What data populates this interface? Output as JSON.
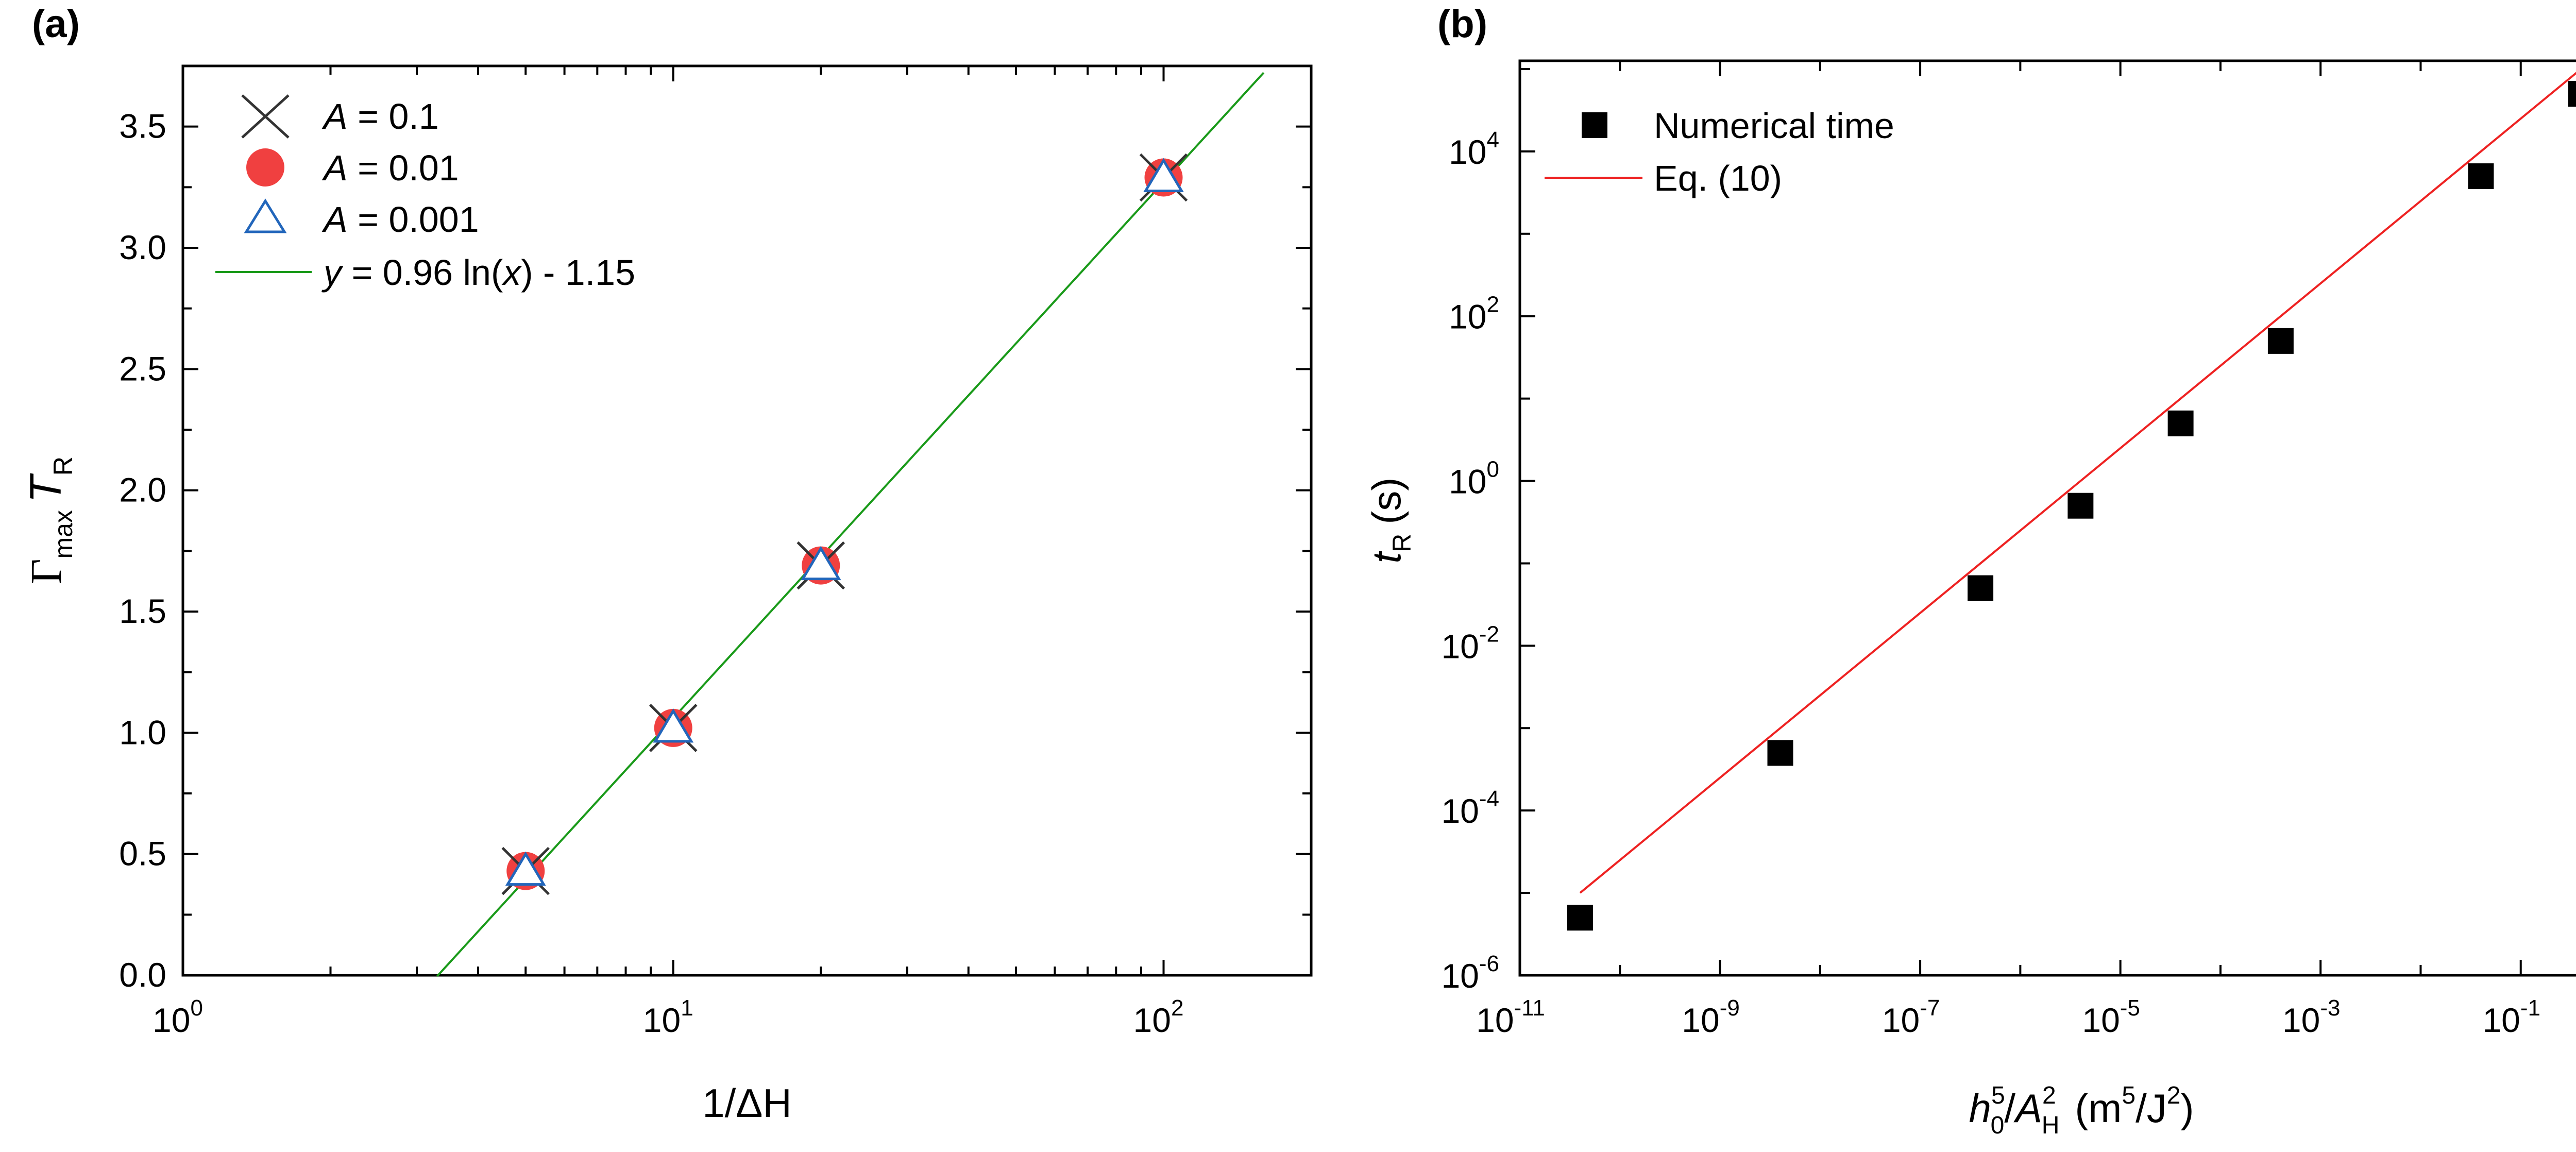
{
  "chart_data": [
    {
      "panel_label": "(a)",
      "type": "scatter",
      "x_scale": "log",
      "xlim": [
        1,
        200
      ],
      "ylim": [
        0,
        3.75
      ],
      "x_ticks": [
        1,
        10,
        100
      ],
      "y_ticks": [
        0.0,
        0.5,
        1.0,
        1.5,
        2.0,
        2.5,
        3.0,
        3.5
      ],
      "y_tick_labels": [
        "0.0",
        "0.5",
        "1.0",
        "1.5",
        "2.0",
        "2.5",
        "3.0",
        "3.5"
      ],
      "xlabel": "1/ΔH",
      "xlabel_sub": "0",
      "ylabel": "Γ",
      "ylabel_sub1": "max",
      "ylabel_T": "T",
      "ylabel_sub2": "R",
      "grid": false,
      "legend_position": "top-left",
      "series": [
        {
          "name": "A = 0.1",
          "name_var": "A",
          "name_rest": " = 0.1",
          "marker": "x",
          "color": "#333333",
          "x": [
            5,
            10,
            20,
            100
          ],
          "y": [
            0.43,
            1.02,
            1.69,
            3.29
          ]
        },
        {
          "name": "A = 0.01",
          "name_var": "A",
          "name_rest": " = 0.01",
          "marker": "circle",
          "color": "#f04040",
          "x": [
            5,
            10,
            20,
            100
          ],
          "y": [
            0.43,
            1.02,
            1.69,
            3.29
          ]
        },
        {
          "name": "A = 0.001",
          "name_var": "A",
          "name_rest": " = 0.001",
          "marker": "triangle",
          "color": "#2266bb",
          "x": [
            5,
            10,
            20,
            100
          ],
          "y": [
            0.43,
            1.02,
            1.69,
            3.29
          ]
        },
        {
          "name": "y = 0.96 ln(x) - 1.15",
          "name_var": "y",
          "name_mid": " = 0.96 ln(",
          "name_var2": "x",
          "name_rest": ") - 1.15",
          "marker": "line",
          "color": "#1a9a1a",
          "fit": {
            "slope": 0.96,
            "intercept": -1.15
          },
          "x_range": [
            3.3,
            160
          ]
        }
      ]
    },
    {
      "panel_label": "(b)",
      "type": "scatter",
      "x_scale": "log",
      "y_scale": "log",
      "xlim_exp": [
        -11,
        0.35
      ],
      "ylim_exp": [
        -6,
        5.1
      ],
      "x_tick_exps": [
        -11,
        -9,
        -7,
        -5,
        -3,
        -1
      ],
      "y_tick_exps": [
        -6,
        -4,
        -2,
        0,
        2,
        4
      ],
      "xlabel_h": "h",
      "xlabel_h_sup": "5",
      "xlabel_h_sub": "0",
      "xlabel_slash": "/",
      "xlabel_A": "A",
      "xlabel_A_sup": "2",
      "xlabel_A_sub": "H",
      "xlabel_units": "(m",
      "xlabel_units_sup": "5",
      "xlabel_units_rest": "/J",
      "xlabel_units_sup2": "2",
      "xlabel_units_end": ")",
      "ylabel_t": "t",
      "ylabel_sub": "R",
      "ylabel_units": "(s)",
      "grid": false,
      "legend_position": "top-left",
      "series": [
        {
          "name": "Numerical time",
          "marker": "square",
          "color": "#000000",
          "x": [
            4e-11,
            4e-09,
            4e-07,
            4e-06,
            4e-05,
            0.0004,
            0.04,
            0.4
          ],
          "y": [
            5e-06,
            0.0005,
            0.05,
            0.5,
            5,
            50,
            5000,
            50000
          ]
        },
        {
          "name": "Eq. (10)",
          "marker": "line",
          "color": "#ee2222",
          "x": [
            4e-11,
            0.4
          ],
          "y": [
            1e-05,
            100000.0
          ]
        }
      ]
    }
  ]
}
